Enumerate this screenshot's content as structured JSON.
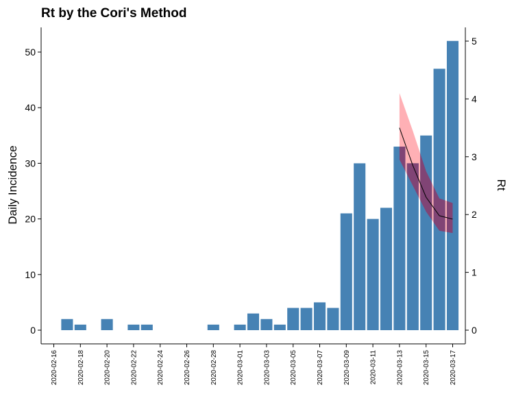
{
  "chart_data": {
    "type": "bar",
    "title": "Rt by the Cori's Method",
    "ylabel": "Daily Incidence",
    "y2label": "Rt",
    "ylim": [
      0,
      54
    ],
    "y2lim": [
      0,
      5.2
    ],
    "yticks": [
      0,
      10,
      20,
      30,
      40,
      50
    ],
    "y2ticks": [
      0,
      1,
      2,
      3,
      4,
      5
    ],
    "grid": false,
    "colors": {
      "bar": "#4682B4",
      "ci_ribbon": "#FFB0B5",
      "ci_ribbon_overlap": "#8B3A6A",
      "rt_line": "#000000"
    },
    "x_tick_labels": [
      "2020-02-16",
      "2020-02-18",
      "2020-02-20",
      "2020-02-22",
      "2020-02-24",
      "2020-02-26",
      "2020-02-28",
      "2020-03-01",
      "2020-03-03",
      "2020-03-05",
      "2020-03-07",
      "2020-03-09",
      "2020-03-11",
      "2020-03-13",
      "2020-03-15",
      "2020-03-17"
    ],
    "dates": [
      "2020-02-16",
      "2020-02-17",
      "2020-02-18",
      "2020-02-19",
      "2020-02-20",
      "2020-02-21",
      "2020-02-22",
      "2020-02-23",
      "2020-02-24",
      "2020-02-25",
      "2020-02-26",
      "2020-02-27",
      "2020-02-28",
      "2020-02-29",
      "2020-03-01",
      "2020-03-02",
      "2020-03-03",
      "2020-03-04",
      "2020-03-05",
      "2020-03-06",
      "2020-03-07",
      "2020-03-08",
      "2020-03-09",
      "2020-03-10",
      "2020-03-11",
      "2020-03-12",
      "2020-03-13",
      "2020-03-14",
      "2020-03-15",
      "2020-03-16",
      "2020-03-17"
    ],
    "incidence": [
      0,
      2,
      1,
      0,
      2,
      0,
      1,
      1,
      0,
      0,
      0,
      0,
      1,
      0,
      1,
      3,
      2,
      1,
      4,
      4,
      5,
      4,
      21,
      30,
      20,
      22,
      33,
      30,
      35,
      47,
      52
    ],
    "rt": {
      "dates": [
        "2020-03-13",
        "2020-03-14",
        "2020-03-15",
        "2020-03-16",
        "2020-03-17"
      ],
      "mean": [
        3.5,
        2.85,
        2.3,
        1.98,
        1.92
      ],
      "lower": [
        2.95,
        2.5,
        2.05,
        1.72,
        1.68
      ],
      "upper": [
        4.1,
        3.45,
        2.75,
        2.28,
        2.2
      ]
    }
  }
}
